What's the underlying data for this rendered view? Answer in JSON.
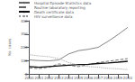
{
  "chart_data": {
    "type": "line",
    "x": [
      2000,
      2001,
      2002,
      2003,
      2004,
      2005,
      2006,
      2007,
      2008,
      2009,
      2010
    ],
    "series": [
      {
        "name": "Hospital Episode Statistics data",
        "color": "#666666",
        "line_style": "solid",
        "values": [
          105,
          100,
          98,
          105,
          150,
          175,
          185,
          200,
          245,
          295,
          350
        ]
      },
      {
        "name": "Routine laboratory reporting",
        "color": "#666666",
        "line_style": "dashed",
        "values": [
          45,
          40,
          50,
          75,
          65,
          55,
          70,
          85,
          95,
          105,
          115
        ]
      },
      {
        "name": "Death certificate data",
        "color": "#111111",
        "line_style": "solid",
        "values": [
          55,
          50,
          55,
          60,
          65,
          70,
          72,
          78,
          82,
          88,
          95
        ]
      },
      {
        "name": "HIV surveillance data",
        "color": "#999999",
        "line_style": "dotted",
        "values": [
          145,
          135,
          130,
          115,
          85,
          65,
          55,
          50,
          42,
          38,
          32
        ]
      }
    ],
    "xlim": [
      2000,
      2010
    ],
    "xticks": [
      2000,
      2001,
      2002,
      2003,
      2004,
      2005,
      2006,
      2007,
      2008,
      2009,
      2010
    ],
    "ylim": [
      0,
      400
    ],
    "yticks": [
      0,
      100,
      200,
      300,
      400
    ],
    "ylabel": "No. cases",
    "legend": "upper left",
    "grid": false
  }
}
